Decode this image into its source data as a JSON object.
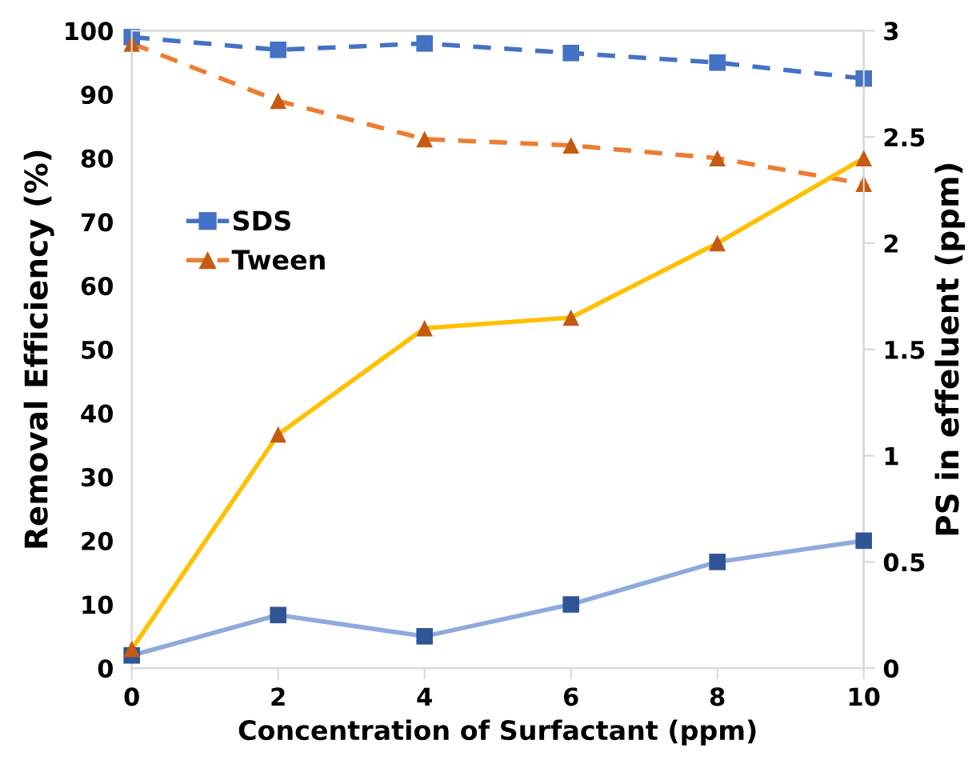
{
  "chart_data": {
    "type": "line",
    "xlabel": "Concentration of Surfactant (ppm)",
    "ylabel": "Removal Efficiency (%)",
    "y2label": "PS in effeluent (ppm)",
    "x": [
      0,
      2,
      4,
      6,
      8,
      10
    ],
    "xlim": [
      0,
      10
    ],
    "xticks": [
      0,
      2,
      4,
      6,
      8,
      10
    ],
    "ylim": [
      0,
      100
    ],
    "yticks": [
      0,
      10,
      20,
      30,
      40,
      50,
      60,
      70,
      80,
      90,
      100
    ],
    "y2lim": [
      0,
      3
    ],
    "y2ticks": [
      0,
      0.5,
      1,
      1.5,
      2,
      2.5,
      3
    ],
    "grid": false,
    "legend": "left",
    "series": [
      {
        "name": "SDS",
        "color": "#4472c4",
        "colors": [
          "#4472c4",
          "#4472c4",
          "#4472c4",
          "#4472c4",
          "#4472c4",
          "#4472c4"
        ],
        "marker": "square",
        "line_style": "dashed",
        "values": [
          99,
          97,
          98,
          96.5,
          95,
          92.5
        ]
      },
      {
        "name": "Tween",
        "color": "#ed7d31",
        "colors": [
          "#c55a11",
          "#c55a11",
          "#c55a11",
          "#c55a11",
          "#c55a11",
          "#c55a11"
        ],
        "marker": "triangle",
        "line_style": "dashed",
        "values": [
          98,
          89,
          83,
          82,
          80,
          76
        ]
      },
      {
        "color": "#8faadc",
        "colors": [
          "#2f5597",
          "#2f5597",
          "#2f5597",
          "#2f5597",
          "#2f5597",
          "#2f5597"
        ],
        "marker": "square",
        "line_style": "solid",
        "axis": "y2",
        "values": [
          0.06,
          0.25,
          0.15,
          0.3,
          0.5,
          0.6
        ]
      },
      {
        "color": "#ffc000",
        "colors": [
          "#c55a11",
          "#c55a11",
          "#c55a11",
          "#c55a11",
          "#c55a11",
          "#c55a11"
        ],
        "marker": "triangle",
        "line_style": "solid",
        "axis": "y2",
        "values": [
          0.09,
          1.1,
          1.6,
          1.65,
          2.0,
          2.4
        ]
      }
    ]
  }
}
